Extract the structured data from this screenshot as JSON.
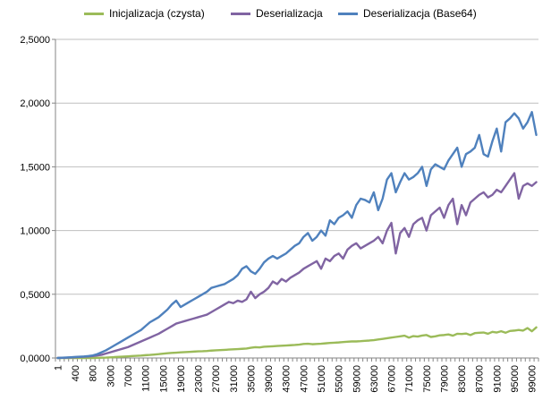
{
  "chart_data": {
    "type": "line",
    "title": "",
    "xlabel": "",
    "ylabel": "",
    "ylim": [
      0,
      2.5
    ],
    "grid": true,
    "legend_position": "top",
    "y_ticks": [
      "0,0000",
      "0,5000",
      "1,0000",
      "1,5000",
      "2,0000",
      "2,5000"
    ],
    "x_tick_labels": [
      "1",
      "400",
      "800",
      "3000",
      "7000",
      "11000",
      "15000",
      "19000",
      "23000",
      "27000",
      "31000",
      "35000",
      "39000",
      "43000",
      "47000",
      "51000",
      "55000",
      "59000",
      "63000",
      "67000",
      "71000",
      "75000",
      "79000",
      "83000",
      "87000",
      "91000",
      "95000",
      "99000"
    ],
    "x_tick_positions": [
      0,
      4,
      8,
      12,
      16,
      20,
      24,
      28,
      32,
      36,
      40,
      44,
      48,
      52,
      56,
      60,
      64,
      68,
      72,
      76,
      80,
      84,
      88,
      92,
      96,
      100,
      104,
      108
    ],
    "x_count": 110,
    "series": [
      {
        "name": "Inicjalizacja (czysta)",
        "color": "#9BBB59",
        "values": [
          0.0,
          0.0,
          0.0,
          0.0,
          0.0,
          0.0,
          0.0,
          0.0,
          0.0,
          0.001,
          0.002,
          0.003,
          0.005,
          0.007,
          0.009,
          0.011,
          0.013,
          0.015,
          0.017,
          0.019,
          0.022,
          0.024,
          0.027,
          0.03,
          0.034,
          0.037,
          0.04,
          0.042,
          0.044,
          0.046,
          0.048,
          0.05,
          0.052,
          0.053,
          0.055,
          0.058,
          0.06,
          0.062,
          0.064,
          0.066,
          0.068,
          0.07,
          0.072,
          0.074,
          0.08,
          0.085,
          0.083,
          0.088,
          0.09,
          0.092,
          0.094,
          0.096,
          0.098,
          0.1,
          0.102,
          0.105,
          0.11,
          0.112,
          0.108,
          0.11,
          0.112,
          0.115,
          0.118,
          0.12,
          0.122,
          0.125,
          0.128,
          0.13,
          0.13,
          0.132,
          0.135,
          0.137,
          0.14,
          0.145,
          0.15,
          0.155,
          0.16,
          0.165,
          0.17,
          0.175,
          0.16,
          0.172,
          0.168,
          0.176,
          0.18,
          0.165,
          0.17,
          0.178,
          0.18,
          0.185,
          0.175,
          0.19,
          0.188,
          0.192,
          0.18,
          0.195,
          0.198,
          0.2,
          0.19,
          0.205,
          0.2,
          0.21,
          0.198,
          0.212,
          0.215,
          0.22,
          0.215,
          0.235,
          0.21,
          0.24
        ]
      },
      {
        "name": "Deserializacja",
        "color": "#8064A2",
        "values": [
          0.0,
          0.001,
          0.002,
          0.004,
          0.006,
          0.008,
          0.01,
          0.012,
          0.015,
          0.02,
          0.025,
          0.035,
          0.045,
          0.055,
          0.065,
          0.075,
          0.085,
          0.1,
          0.115,
          0.13,
          0.145,
          0.16,
          0.175,
          0.19,
          0.21,
          0.23,
          0.25,
          0.27,
          0.28,
          0.29,
          0.3,
          0.31,
          0.32,
          0.33,
          0.34,
          0.36,
          0.38,
          0.4,
          0.42,
          0.44,
          0.43,
          0.45,
          0.44,
          0.46,
          0.52,
          0.47,
          0.5,
          0.52,
          0.55,
          0.6,
          0.58,
          0.62,
          0.6,
          0.63,
          0.65,
          0.67,
          0.7,
          0.72,
          0.74,
          0.76,
          0.7,
          0.78,
          0.76,
          0.8,
          0.82,
          0.78,
          0.85,
          0.88,
          0.9,
          0.86,
          0.88,
          0.9,
          0.92,
          0.95,
          0.9,
          1.0,
          1.06,
          0.82,
          0.98,
          1.02,
          0.95,
          1.05,
          1.08,
          1.1,
          1.0,
          1.12,
          1.15,
          1.18,
          1.1,
          1.2,
          1.25,
          1.05,
          1.2,
          1.12,
          1.22,
          1.25,
          1.28,
          1.3,
          1.26,
          1.28,
          1.32,
          1.3,
          1.35,
          1.4,
          1.45,
          1.25,
          1.35,
          1.37,
          1.35,
          1.38
        ]
      },
      {
        "name": "Deserializacja (Base64)",
        "color": "#4F81BD",
        "values": [
          0.0,
          0.002,
          0.004,
          0.006,
          0.008,
          0.01,
          0.012,
          0.015,
          0.02,
          0.03,
          0.045,
          0.06,
          0.08,
          0.1,
          0.12,
          0.14,
          0.16,
          0.18,
          0.2,
          0.22,
          0.25,
          0.28,
          0.3,
          0.32,
          0.35,
          0.38,
          0.42,
          0.45,
          0.4,
          0.42,
          0.44,
          0.46,
          0.48,
          0.5,
          0.52,
          0.55,
          0.56,
          0.57,
          0.58,
          0.6,
          0.62,
          0.65,
          0.7,
          0.72,
          0.68,
          0.66,
          0.7,
          0.75,
          0.78,
          0.8,
          0.78,
          0.8,
          0.82,
          0.85,
          0.88,
          0.9,
          0.95,
          0.98,
          0.92,
          0.95,
          1.0,
          0.96,
          1.08,
          1.05,
          1.1,
          1.12,
          1.15,
          1.1,
          1.2,
          1.25,
          1.24,
          1.22,
          1.3,
          1.16,
          1.25,
          1.4,
          1.45,
          1.3,
          1.38,
          1.45,
          1.4,
          1.42,
          1.45,
          1.5,
          1.35,
          1.48,
          1.52,
          1.5,
          1.48,
          1.55,
          1.6,
          1.65,
          1.5,
          1.6,
          1.62,
          1.65,
          1.75,
          1.6,
          1.58,
          1.7,
          1.8,
          1.62,
          1.85,
          1.88,
          1.92,
          1.88,
          1.8,
          1.85,
          1.93,
          1.75
        ]
      }
    ]
  }
}
